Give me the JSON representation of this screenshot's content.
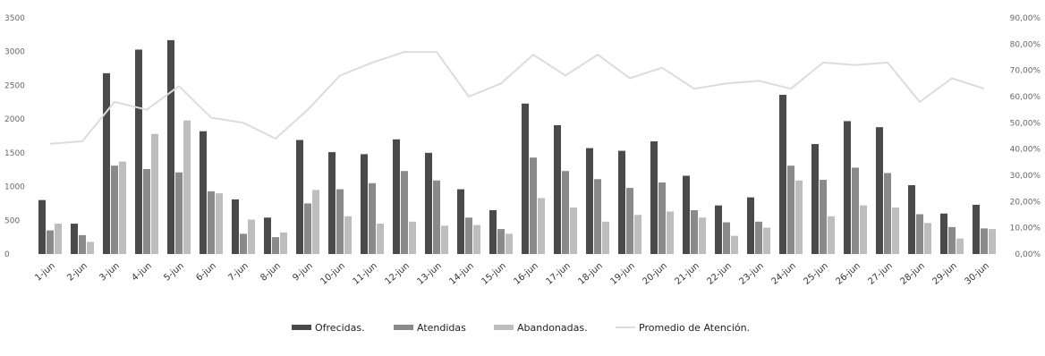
{
  "chart_data": {
    "type": "bar",
    "categories": [
      "1-jun",
      "2-jun",
      "3-jun",
      "4-jun",
      "5-jun",
      "6-jun",
      "7-jun",
      "8-jun",
      "9-jun",
      "10-jun",
      "11-jun",
      "12-jun",
      "13-jun",
      "14-jun",
      "15-jun",
      "16-jun",
      "17-jun",
      "18-jun",
      "19-jun",
      "20-jun",
      "21-jun",
      "22-jun",
      "23-jun",
      "24-jun",
      "25-jun",
      "26-jun",
      "27-jun",
      "28-jun",
      "29-jun",
      "30-jun"
    ],
    "series": [
      {
        "name": "Ofrecidas.",
        "kind": "bar",
        "axis": "left",
        "color": "#4a4a4a",
        "values": [
          800,
          450,
          2680,
          3030,
          3170,
          1820,
          810,
          540,
          1690,
          1510,
          1480,
          1700,
          1500,
          960,
          650,
          2230,
          1910,
          1570,
          1530,
          1670,
          1160,
          720,
          840,
          2360,
          1630,
          1970,
          1880,
          1020,
          600,
          730
        ]
      },
      {
        "name": "Atendidas",
        "kind": "bar",
        "axis": "left",
        "color": "#8a8a8a",
        "values": [
          350,
          280,
          1310,
          1260,
          1210,
          930,
          300,
          250,
          750,
          960,
          1050,
          1230,
          1090,
          540,
          370,
          1430,
          1230,
          1110,
          980,
          1060,
          650,
          470,
          480,
          1310,
          1100,
          1280,
          1200,
          590,
          400,
          380
        ]
      },
      {
        "name": "Abandonadas.",
        "kind": "bar",
        "axis": "left",
        "color": "#bdbdbd",
        "values": [
          450,
          180,
          1370,
          1780,
          1980,
          900,
          510,
          320,
          950,
          560,
          450,
          480,
          420,
          430,
          300,
          830,
          690,
          480,
          580,
          630,
          540,
          270,
          390,
          1090,
          560,
          720,
          690,
          460,
          230,
          370
        ]
      },
      {
        "name": "Promedio de Atención.",
        "kind": "line",
        "axis": "right",
        "color": "#dcdcdc",
        "values": [
          42,
          43,
          58,
          55,
          64,
          52,
          50,
          44,
          55,
          68,
          73,
          77,
          77,
          60,
          65,
          76,
          68,
          76,
          67,
          71,
          63,
          65,
          66,
          63,
          73,
          72,
          73,
          58,
          67,
          63
        ]
      }
    ],
    "y_left": {
      "min": 0,
      "max": 3500,
      "ticks": [
        "0",
        "500",
        "1000",
        "1500",
        "2000",
        "2500",
        "3000",
        "3500"
      ],
      "tick_values": [
        0,
        500,
        1000,
        1500,
        2000,
        2500,
        3000,
        3500
      ]
    },
    "y_right": {
      "min": 0,
      "max": 90,
      "ticks": [
        "0,00%",
        "10,00%",
        "20,00%",
        "30,00%",
        "40,00%",
        "50,00%",
        "60,00%",
        "70,00%",
        "80,00%",
        "90,00%"
      ],
      "tick_values": [
        0,
        10,
        20,
        30,
        40,
        50,
        60,
        70,
        80,
        90
      ]
    },
    "title": "",
    "xlabel": "",
    "ylabel": "",
    "grid": false,
    "legend_position": "bottom"
  }
}
